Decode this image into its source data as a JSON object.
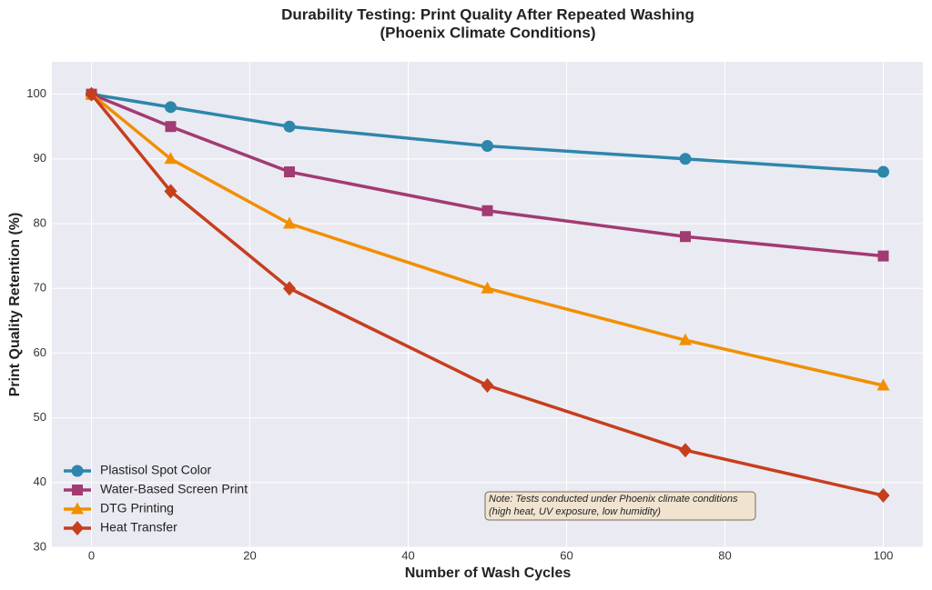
{
  "chart_data": {
    "type": "line",
    "title": [
      "Durability Testing: Print Quality After Repeated Washing",
      "(Phoenix Climate Conditions)"
    ],
    "x_label": "Number of Wash Cycles",
    "y_label": "Print Quality Retention (%)",
    "x": [
      0,
      10,
      25,
      50,
      75,
      100
    ],
    "series": [
      {
        "name": "Plastisol Spot Color",
        "color": "#2e86ab",
        "marker": "circle",
        "values": [
          100,
          98,
          95,
          92,
          90,
          88
        ]
      },
      {
        "name": "Water-Based Screen Print",
        "color": "#a23b72",
        "marker": "square",
        "values": [
          100,
          95,
          88,
          82,
          78,
          75
        ]
      },
      {
        "name": "DTG Printing",
        "color": "#f18f01",
        "marker": "triangle",
        "values": [
          100,
          90,
          80,
          70,
          62,
          55
        ]
      },
      {
        "name": "Heat Transfer",
        "color": "#c73e1d",
        "marker": "diamond",
        "values": [
          100,
          85,
          70,
          55,
          45,
          38
        ]
      }
    ],
    "xlim": [
      -5,
      105
    ],
    "xticks": [
      0,
      20,
      40,
      60,
      80,
      100
    ],
    "ylim": [
      30,
      105
    ],
    "yticks": [
      30,
      40,
      50,
      60,
      70,
      80,
      90,
      100
    ],
    "grid": true,
    "legend": "lower left",
    "annotation": [
      "Note: Tests conducted under Phoenix climate conditions",
      "(high heat, UV exposure, low humidity)"
    ]
  }
}
